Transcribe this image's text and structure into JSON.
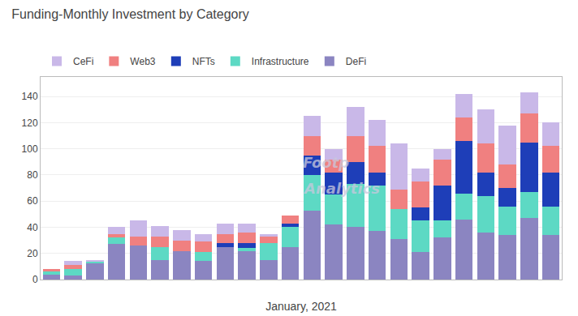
{
  "chart_data": {
    "type": "bar",
    "stacked": true,
    "title": "Funding-Monthly Investment by Category",
    "xlabel": "January, 2021",
    "categories": [
      null,
      null,
      null,
      null,
      null,
      null,
      null,
      null,
      null,
      null,
      null,
      null,
      null,
      null,
      null,
      null,
      null,
      null,
      null,
      null,
      null,
      null,
      null,
      null
    ],
    "series": [
      {
        "name": "DeFi",
        "color": "#8b85c1",
        "values": [
          4,
          3,
          13,
          27,
          26,
          15,
          22,
          14,
          25,
          22,
          15,
          25,
          53,
          42,
          40,
          37,
          31,
          21,
          32,
          46,
          36,
          34,
          47,
          34
        ]
      },
      {
        "name": "Infrastructure",
        "color": "#5dd9c4",
        "values": [
          2,
          5,
          1,
          5,
          0,
          10,
          0,
          7,
          0,
          2,
          13,
          15,
          27,
          23,
          33,
          35,
          23,
          24,
          13,
          20,
          28,
          22,
          20,
          22
        ]
      },
      {
        "name": "NFTs",
        "color": "#1e3eb8",
        "values": [
          0,
          0,
          0,
          0,
          0,
          0,
          0,
          0,
          3,
          4,
          0,
          3,
          15,
          17,
          17,
          10,
          0,
          10,
          27,
          40,
          18,
          14,
          38,
          26
        ]
      },
      {
        "name": "Web3",
        "color": "#f08080",
        "values": [
          2,
          3,
          0,
          3,
          7,
          8,
          8,
          8,
          7,
          8,
          5,
          6,
          15,
          10,
          20,
          20,
          15,
          20,
          20,
          18,
          22,
          18,
          22,
          20
        ]
      },
      {
        "name": "CeFi",
        "color": "#c9b8e8",
        "values": [
          0,
          3,
          1,
          5,
          12,
          8,
          8,
          6,
          8,
          7,
          2,
          0,
          15,
          8,
          22,
          20,
          35,
          10,
          8,
          18,
          26,
          30,
          16,
          18
        ]
      }
    ],
    "ylim": [
      0,
      155
    ],
    "yticks": [
      0,
      20,
      40,
      60,
      80,
      100,
      120,
      140
    ],
    "grid": true,
    "legend": "upper left",
    "tick_labels": "y",
    "annotations": [
      "Footp",
      "Analytics"
    ]
  }
}
